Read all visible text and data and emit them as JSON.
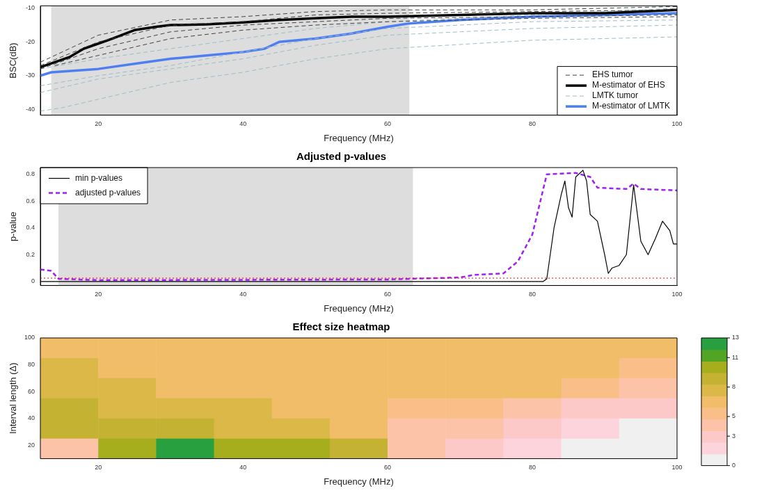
{
  "chart_data": [
    {
      "type": "line",
      "xlabel": "Frequency (MHz)",
      "ylabel": "BSC(dB)",
      "xlim": [
        12,
        100
      ],
      "ylim": [
        -41.7,
        -9.3
      ],
      "xticks": [
        20,
        40,
        60,
        80,
        100
      ],
      "yticks": [
        -10,
        -20,
        -30,
        -40
      ],
      "legend": "bottom right",
      "bands": [
        {
          "axis": "x",
          "from": 13.5,
          "to": 63,
          "label": null,
          "color": "#dddddd"
        }
      ],
      "series": [
        {
          "name": "EHS tumor",
          "color": "#404040",
          "line_style": "dashed",
          "x": [
            12,
            20,
            30,
            40,
            50,
            60,
            80,
            100
          ],
          "values": [
            -26,
            -18,
            -13.5,
            -12.5,
            -11,
            -10.5,
            -10.5,
            -9.5
          ]
        },
        {
          "color": "#404040",
          "line_style": "dashed",
          "x": [
            12,
            20,
            30,
            40,
            50,
            60,
            80,
            100
          ],
          "values": [
            -28,
            -22,
            -17,
            -15,
            -14,
            -13,
            -12.5,
            -12
          ]
        },
        {
          "color": "#404040",
          "line_style": "dashed",
          "x": [
            12,
            20,
            30,
            40,
            50,
            60,
            80,
            100
          ],
          "values": [
            -27,
            -20,
            -15,
            -14,
            -12,
            -11.5,
            -11,
            -10.5
          ]
        },
        {
          "color": "#404040",
          "line_style": "dashed",
          "x": [
            14,
            20,
            30,
            40,
            50,
            60,
            80,
            100
          ],
          "values": [
            -27,
            -24,
            -19,
            -16.5,
            -15,
            -14,
            -13,
            -12.5
          ]
        },
        {
          "name": "M-estimator of EHS",
          "color": "#000000",
          "line_style": "solid",
          "x": [
            12,
            14,
            16,
            18,
            20,
            22,
            25,
            28,
            30,
            35,
            40,
            45,
            50,
            55,
            60,
            70,
            80,
            90,
            100
          ],
          "values": [
            -27.5,
            -26,
            -24.5,
            -22,
            -20.5,
            -19,
            -16.5,
            -15.5,
            -15,
            -14.8,
            -14.2,
            -13.5,
            -13,
            -12.5,
            -12.5,
            -12,
            -11.5,
            -11.5,
            -10.5
          ]
        },
        {
          "name": "LMTK tumor",
          "color": "#9bbcc8",
          "line_style": "dashed",
          "x": [
            12,
            15,
            20,
            30,
            40,
            50,
            60,
            80,
            100
          ],
          "values": [
            -40.5,
            -39.5,
            -37,
            -32,
            -29,
            -25,
            -22,
            -19.5,
            -18.5
          ]
        },
        {
          "color": "#9bbcc8",
          "line_style": "dashed",
          "x": [
            12,
            20,
            30,
            40,
            50,
            60,
            80,
            100
          ],
          "values": [
            -35,
            -31,
            -28,
            -25,
            -21,
            -18,
            -16,
            -15
          ]
        },
        {
          "color": "#9bbcc8",
          "line_style": "dashed",
          "x": [
            12,
            20,
            30,
            40,
            50,
            60,
            80,
            100
          ],
          "values": [
            -28,
            -25,
            -22,
            -19,
            -16,
            -14,
            -12,
            -10
          ]
        },
        {
          "color": "#9bbcc8",
          "line_style": "dashed",
          "x": [
            12,
            20,
            30,
            40,
            50,
            60,
            80,
            100
          ],
          "values": [
            -33,
            -30,
            -27,
            -23,
            -19,
            -16,
            -14,
            -13.5
          ]
        },
        {
          "name": "M-estimator of LMTK",
          "color": "#4d7ff0",
          "line_style": "solid",
          "x": [
            12,
            13.5,
            20,
            25,
            30,
            35,
            40,
            43,
            45,
            50,
            55,
            60,
            63,
            70,
            80,
            90,
            100
          ],
          "values": [
            -30,
            -29,
            -28,
            -26.5,
            -25,
            -24,
            -23,
            -22,
            -20,
            -19,
            -17.5,
            -15.5,
            -14.5,
            -13.5,
            -12.5,
            -12,
            -11.5
          ]
        }
      ]
    },
    {
      "type": "line",
      "title": "Adjusted p-values",
      "xlabel": "Frequency (MHz)",
      "ylabel": "p-value",
      "xlim": [
        12,
        100
      ],
      "ylim": [
        -0.03,
        0.85
      ],
      "xticks": [
        20,
        40,
        60,
        80,
        100
      ],
      "yticks": [
        0.0,
        0.2,
        0.4,
        0.6,
        0.8
      ],
      "legend": "top left",
      "bands": [
        {
          "axis": "x",
          "from": 14.5,
          "to": 63.5,
          "label": null,
          "color": "#dddddd"
        }
      ],
      "ref_lines": [
        {
          "axis": "y",
          "value": 0.025,
          "label": null,
          "color": "#ff0000",
          "line_style": "dotted"
        }
      ],
      "series": [
        {
          "name": "min p-values",
          "color": "#000000",
          "line_style": "solid",
          "x": [
            12,
            81.5,
            82,
            83,
            84,
            84.5,
            85,
            85.5,
            86,
            87,
            87.5,
            88,
            89,
            90,
            90.5,
            91,
            92,
            93,
            94,
            95,
            96,
            97,
            98,
            99,
            99.5,
            100
          ],
          "values": [
            0,
            0,
            0.02,
            0.4,
            0.65,
            0.75,
            0.55,
            0.48,
            0.78,
            0.83,
            0.75,
            0.5,
            0.45,
            0.2,
            0.06,
            0.1,
            0.12,
            0.2,
            0.72,
            0.3,
            0.2,
            0.32,
            0.45,
            0.38,
            0.28,
            0.28
          ]
        },
        {
          "name": "adjusted p-values",
          "color": "#a020f0",
          "line_style": "dashed",
          "x": [
            12,
            13.5,
            14.5,
            20,
            60,
            63,
            70,
            72,
            76,
            78,
            80,
            82,
            86,
            88,
            89,
            93,
            94,
            95,
            100
          ],
          "values": [
            0.09,
            0.08,
            0.02,
            0.01,
            0.015,
            0.02,
            0.03,
            0.05,
            0.06,
            0.15,
            0.35,
            0.8,
            0.81,
            0.78,
            0.7,
            0.69,
            0.73,
            0.69,
            0.68
          ]
        }
      ]
    },
    {
      "type": "heatmap",
      "title": "Effect size heatmap",
      "xlabel": "Frequency (MHz)",
      "ylabel": "Interval length (Δ)",
      "xlim": [
        12,
        100
      ],
      "ylim": [
        10,
        100
      ],
      "xticks": [
        20,
        40,
        60,
        80,
        100
      ],
      "yticks": [
        20,
        40,
        60,
        80,
        100
      ],
      "clim": [
        0,
        13
      ],
      "cticks": [
        0,
        3,
        5,
        8,
        11,
        13
      ],
      "cells": [
        [
          6.8,
          6.2,
          6,
          6,
          6,
          6,
          6,
          6,
          6,
          6,
          6
        ],
        [
          7.5,
          7,
          6.5,
          6,
          6,
          6,
          6,
          6,
          6,
          6,
          5.5
        ],
        [
          8,
          7.5,
          7,
          6.8,
          6.5,
          6,
          6,
          6,
          6,
          5.5,
          4.5
        ],
        [
          8.5,
          8.2,
          7.8,
          7.2,
          6.8,
          6.2,
          5.8,
          5.2,
          4.5,
          3.5,
          2.5
        ],
        [
          9,
          9,
          8.8,
          8.2,
          7.8,
          7,
          4.5,
          4,
          3.2,
          2,
          1
        ],
        [
          4,
          10,
          12,
          10.5,
          9.5,
          9,
          4,
          3,
          2,
          1,
          0.8
        ]
      ]
    }
  ]
}
